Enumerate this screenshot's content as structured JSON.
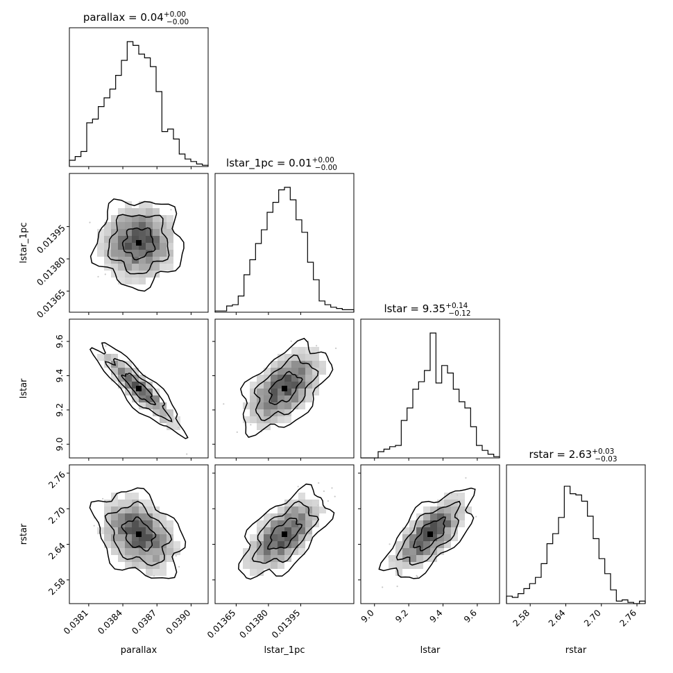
{
  "chart_data": {
    "type": "corner",
    "parameters": [
      {
        "name": "parallax",
        "label": "parallax",
        "median": 0.04,
        "err_plus": 0.0,
        "err_minus": 0.0,
        "title_main": "parallax = 0.04",
        "title_sup": "+0.00",
        "title_sub": "−0.00",
        "range": [
          0.03793,
          0.03915
        ],
        "ticks": [
          0.0381,
          0.0384,
          0.0387,
          0.039
        ],
        "tick_labels": [
          "0.0381",
          "0.0384",
          "0.0387",
          "0.0390"
        ],
        "hist": [
          0.05,
          0.08,
          0.12,
          0.35,
          0.38,
          0.48,
          0.55,
          0.62,
          0.73,
          0.85,
          1.0,
          0.97,
          0.9,
          0.87,
          0.8,
          0.6,
          0.28,
          0.3,
          0.22,
          0.1,
          0.06,
          0.04,
          0.02,
          0.01
        ]
      },
      {
        "name": "lstar_1pc",
        "label": "lstar_1pc",
        "median": 0.01,
        "err_plus": 0.0,
        "err_minus": 0.0,
        "title_main": "lstar_1pc = 0.01",
        "title_sup": "+0.00",
        "title_sub": "−0.00",
        "range": [
          0.013552,
          0.014197
        ],
        "ticks": [
          0.01365,
          0.0138,
          0.01395
        ],
        "tick_labels": [
          "0.01365",
          "0.01380",
          "0.01395"
        ],
        "hist": [
          0.01,
          0.01,
          0.05,
          0.06,
          0.13,
          0.3,
          0.42,
          0.55,
          0.66,
          0.8,
          0.88,
          0.98,
          1.0,
          0.9,
          0.74,
          0.64,
          0.4,
          0.26,
          0.09,
          0.06,
          0.04,
          0.03,
          0.02,
          0.02
        ]
      },
      {
        "name": "lstar",
        "label": "lstar",
        "median": 9.35,
        "err_plus": 0.14,
        "err_minus": 0.12,
        "title_main": "lstar = 9.35",
        "title_sup": "+0.14",
        "title_sub": "−0.12",
        "range": [
          8.92,
          9.73
        ],
        "ticks": [
          9.0,
          9.2,
          9.4,
          9.6
        ],
        "tick_labels": [
          "9.0",
          "9.2",
          "9.4",
          "9.6"
        ],
        "hist": [
          0.0,
          0.0,
          0.0,
          0.05,
          0.07,
          0.09,
          0.1,
          0.3,
          0.4,
          0.55,
          0.61,
          0.7,
          1.0,
          0.6,
          0.74,
          0.68,
          0.55,
          0.45,
          0.4,
          0.25,
          0.1,
          0.06,
          0.03,
          0.01
        ]
      },
      {
        "name": "rstar",
        "label": "rstar",
        "median": 2.63,
        "err_plus": 0.03,
        "err_minus": 0.03,
        "title_main": "rstar = 2.63",
        "title_sup": "+0.03",
        "title_sub": "−0.03",
        "range": [
          2.54,
          2.774
        ],
        "ticks": [
          2.58,
          2.64,
          2.7,
          2.76
        ],
        "tick_labels": [
          "2.58",
          "2.64",
          "2.70",
          "2.76"
        ],
        "hist": [
          0.06,
          0.05,
          0.08,
          0.12,
          0.16,
          0.21,
          0.32,
          0.48,
          0.56,
          0.69,
          0.94,
          0.88,
          0.87,
          0.82,
          0.7,
          0.52,
          0.36,
          0.24,
          0.11,
          0.02,
          0.03,
          0.01,
          0.0,
          0.02
        ]
      }
    ],
    "correlations": {
      "1_0": 0.05,
      "2_0": -0.92,
      "2_1": 0.55,
      "3_0": -0.35,
      "3_1": 0.62,
      "3_2": 0.7
    },
    "contour_levels": [
      "inner",
      "middle",
      "outer"
    ],
    "grid": false
  }
}
